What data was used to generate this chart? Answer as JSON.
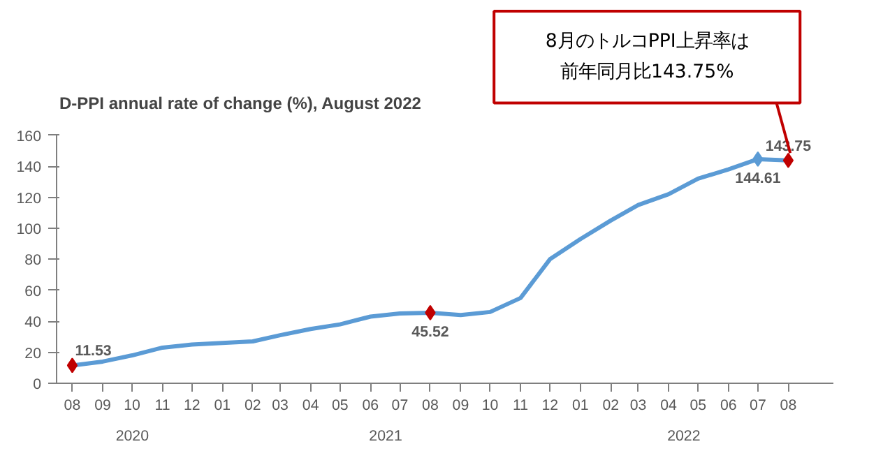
{
  "chart_data": {
    "type": "line",
    "title": "D-PPI annual rate of change (%), August 2022",
    "x": [
      "2020-08",
      "2020-09",
      "2020-10",
      "2020-11",
      "2020-12",
      "2021-01",
      "2021-02",
      "2021-03",
      "2021-04",
      "2021-05",
      "2021-06",
      "2021-07",
      "2021-08",
      "2021-09",
      "2021-10",
      "2021-11",
      "2021-12",
      "2022-01",
      "2022-02",
      "2022-03",
      "2022-04",
      "2022-05",
      "2022-06",
      "2022-07",
      "2022-08"
    ],
    "series": [
      {
        "color": "#5b9bd5",
        "values": [
          11.53,
          14,
          18,
          23,
          25,
          26,
          27,
          31,
          35,
          38,
          43,
          45,
          45.52,
          44,
          46,
          55,
          80,
          93,
          105,
          115,
          122,
          132,
          138,
          144.61,
          143.75
        ],
        "value_labels": [
          "11.53",
          null,
          null,
          null,
          null,
          null,
          null,
          null,
          null,
          null,
          null,
          null,
          "45.52",
          null,
          null,
          null,
          null,
          null,
          null,
          null,
          null,
          null,
          null,
          "144.61",
          "143.75"
        ],
        "colors": [
          "#c00000",
          null,
          null,
          null,
          null,
          null,
          null,
          null,
          null,
          null,
          null,
          null,
          "#c00000",
          null,
          null,
          null,
          null,
          null,
          null,
          null,
          null,
          null,
          null,
          "#5b9bd5",
          "#c00000"
        ]
      }
    ],
    "xlim": [
      "2020-07-16",
      "2022-09-16"
    ],
    "xticks": [
      {
        "value": "2020-08",
        "label": "08"
      },
      {
        "value": "2020-09",
        "label": "09"
      },
      {
        "value": "2020-10",
        "label": "10"
      },
      {
        "value": "2020-11",
        "label": "11"
      },
      {
        "value": "2020-12",
        "label": "12"
      },
      {
        "value": "2021-01",
        "label": "01"
      },
      {
        "value": "2021-02",
        "label": "02"
      },
      {
        "value": "2021-03",
        "label": "03"
      },
      {
        "value": "2021-04",
        "label": "04"
      },
      {
        "value": "2021-05",
        "label": "05"
      },
      {
        "value": "2021-06",
        "label": "06"
      },
      {
        "value": "2021-07",
        "label": "07"
      },
      {
        "value": "2021-08",
        "label": "08"
      },
      {
        "value": "2021-09",
        "label": "09"
      },
      {
        "value": "2021-10",
        "label": "10"
      },
      {
        "value": "2021-11",
        "label": "11"
      },
      {
        "value": "2021-12",
        "label": "12"
      },
      {
        "value": "2022-01",
        "label": "01"
      },
      {
        "value": "2022-02",
        "label": "02"
      },
      {
        "value": "2022-03",
        "label": "03"
      },
      {
        "value": "2022-04",
        "label": "04"
      },
      {
        "value": "2022-05",
        "label": "05"
      },
      {
        "value": "2022-06",
        "label": "06"
      },
      {
        "value": "2022-07",
        "label": "07"
      },
      {
        "value": "2022-08",
        "label": "08"
      }
    ],
    "ylim": [
      0,
      160
    ],
    "yticks": [
      0,
      20,
      40,
      60,
      80,
      100,
      120,
      140,
      160
    ],
    "grid": false,
    "annotations": [
      "2020",
      "2021",
      "2022",
      "8月のトルコPPI上昇率は",
      "前年同月比143.75%"
    ]
  }
}
